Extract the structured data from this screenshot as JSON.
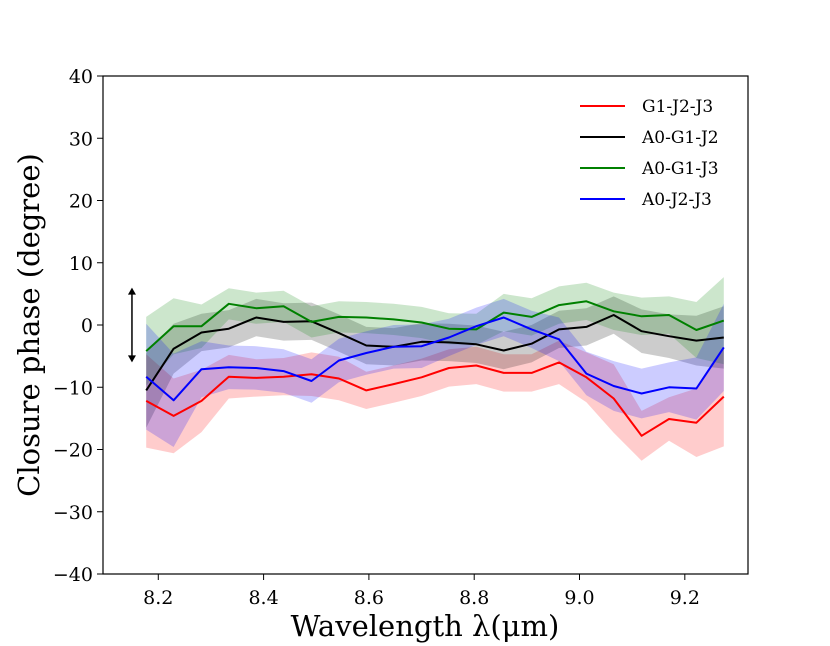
{
  "chart_data": {
    "type": "line",
    "title": "",
    "xlabel": "Wavelength λ(μm)",
    "ylabel": "Closure phase (degree)",
    "xlim": [
      8.095,
      9.32
    ],
    "ylim": [
      -40,
      40
    ],
    "xticks": [
      8.2,
      8.4,
      8.6,
      8.8,
      9.0,
      9.2
    ],
    "yticks": [
      -40,
      -30,
      -20,
      -10,
      0,
      10,
      20,
      30,
      40
    ],
    "xtick_labels": [
      "8.2",
      "8.4",
      "8.6",
      "8.8",
      "9.0",
      "9.2"
    ],
    "ytick_labels": [
      "−40",
      "−30",
      "−20",
      "−10",
      "0",
      "10",
      "20",
      "30",
      "40"
    ],
    "grid": false,
    "legend_position": "top-right",
    "error_bar": {
      "x": 8.15,
      "y_low": -6,
      "y_high": 6
    },
    "x": [
      8.177,
      8.229,
      8.282,
      8.334,
      8.386,
      8.438,
      8.491,
      8.543,
      8.595,
      8.647,
      8.7,
      8.752,
      8.804,
      8.856,
      8.909,
      8.961,
      9.013,
      9.065,
      9.118,
      9.17,
      9.222,
      9.274
    ],
    "series": [
      {
        "name": "G1-J2-J3",
        "color": "#ff0000",
        "values": [
          -12.2,
          -14.6,
          -12.2,
          -8.3,
          -8.5,
          -8.3,
          -7.9,
          -8.6,
          -10.5,
          -9.5,
          -8.4,
          -6.9,
          -6.5,
          -7.7,
          -7.7,
          -6.0,
          -8.4,
          -11.8,
          -17.8,
          -15.1,
          -15.7,
          -11.5
        ],
        "err": [
          7.5,
          6.0,
          5.0,
          3.5,
          3.0,
          3.0,
          3.5,
          3.5,
          3.0,
          3.0,
          3.0,
          3.0,
          3.0,
          3.0,
          3.0,
          3.5,
          4.0,
          5.5,
          4.0,
          3.5,
          5.5,
          8.0
        ]
      },
      {
        "name": "A0-G1-J2",
        "color": "#000000",
        "values": [
          -10.5,
          -3.8,
          -1.2,
          -0.6,
          1.2,
          0.5,
          0.6,
          -1.3,
          -3.3,
          -3.5,
          -2.7,
          -2.8,
          -3.1,
          -4.1,
          -3.0,
          -0.7,
          -0.3,
          1.6,
          -1.0,
          -1.8,
          -2.5,
          -2.0
        ],
        "err": [
          6.0,
          4.0,
          3.0,
          3.0,
          3.0,
          3.0,
          3.0,
          3.0,
          3.0,
          3.0,
          3.0,
          3.0,
          3.0,
          3.0,
          3.0,
          3.0,
          3.0,
          3.0,
          3.5,
          3.5,
          4.0,
          5.0
        ]
      },
      {
        "name": "A0-G1-J3",
        "color": "#008000",
        "values": [
          -4.2,
          -0.2,
          -0.2,
          3.4,
          2.7,
          3.0,
          0.5,
          1.3,
          1.2,
          0.9,
          0.4,
          -0.6,
          -0.7,
          2.0,
          1.3,
          3.2,
          3.8,
          2.2,
          1.4,
          1.6,
          -0.8,
          0.7
        ],
        "err": [
          5.5,
          4.5,
          3.5,
          2.5,
          2.5,
          2.5,
          2.5,
          2.5,
          2.5,
          2.5,
          2.5,
          2.5,
          2.5,
          3.0,
          3.0,
          3.0,
          3.0,
          3.0,
          3.0,
          3.0,
          4.5,
          7.0
        ]
      },
      {
        "name": "A0-J2-J3",
        "color": "#0000ff",
        "values": [
          -8.3,
          -12.1,
          -7.1,
          -6.8,
          -6.9,
          -7.4,
          -9.0,
          -5.7,
          -4.5,
          -3.5,
          -3.4,
          -2.0,
          -0.2,
          1.2,
          -0.7,
          -2.3,
          -7.8,
          -9.8,
          -11.0,
          -10.0,
          -10.2,
          -3.6
        ],
        "err": [
          8.5,
          7.5,
          4.5,
          3.5,
          3.5,
          3.5,
          3.5,
          3.5,
          3.5,
          3.5,
          3.5,
          3.0,
          3.0,
          3.0,
          3.0,
          3.5,
          3.5,
          4.0,
          4.0,
          4.0,
          5.0,
          7.0
        ]
      }
    ]
  }
}
